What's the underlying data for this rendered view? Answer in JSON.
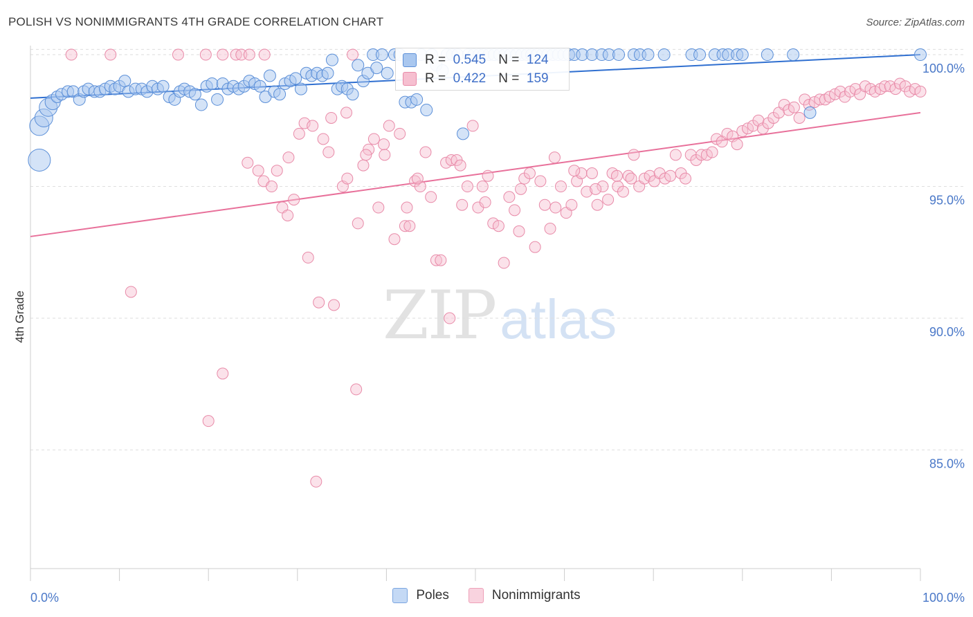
{
  "header": {
    "title": "POLISH VS NONIMMIGRANTS 4TH GRADE CORRELATION CHART",
    "source": "Source: ZipAtlas.com"
  },
  "watermark": {
    "zip": "ZIP",
    "atlas": "atlas"
  },
  "legend": {
    "rows": [
      {
        "r_label": "R =",
        "r_value": "0.545",
        "n_label": "N =",
        "n_value": "124"
      },
      {
        "r_label": "R =",
        "r_value": "0.422",
        "n_label": "N =",
        "n_value": "159"
      }
    ]
  },
  "bottom_legend": {
    "poles": "Poles",
    "nonimmigrants": "Nonimmigrants"
  },
  "colors": {
    "poles_fill": "#a9c7ef",
    "poles_stroke": "#5b8fd8",
    "poles_line": "#2f6fd0",
    "non_fill": "#f6bfd0",
    "non_stroke": "#e88aa8",
    "non_line": "#e8709a",
    "tick_text": "#4a78c8",
    "grid": "#dedede"
  },
  "chart_data": {
    "type": "scatter",
    "title": "POLISH VS NONIMMIGRANTS 4TH GRADE CORRELATION CHART",
    "xlabel": "",
    "ylabel": "4th Grade",
    "xlim": [
      0,
      100
    ],
    "ylim": [
      80.5,
      100.5
    ],
    "x_tick_labels": [
      "0.0%",
      "100.0%"
    ],
    "y_ticks": [
      85,
      90,
      95,
      100
    ],
    "y_tick_labels": [
      "85.0%",
      "90.0%",
      "95.0%",
      "100.0%"
    ],
    "grid": true,
    "series": [
      {
        "name": "Poles",
        "r": 0.545,
        "n": 124,
        "trend": {
          "x": [
            0,
            100
          ],
          "y": [
            98.35,
            100.0
          ]
        },
        "points": [
          [
            1,
            96.0
          ],
          [
            1,
            97.3
          ],
          [
            1.5,
            97.6
          ],
          [
            2,
            98.0
          ],
          [
            2.5,
            98.2
          ],
          [
            3,
            98.4
          ],
          [
            3.5,
            98.5
          ],
          [
            4.2,
            98.6
          ],
          [
            4.8,
            98.6
          ],
          [
            5.5,
            98.3
          ],
          [
            6,
            98.6
          ],
          [
            6.5,
            98.7
          ],
          [
            7.2,
            98.6
          ],
          [
            7.8,
            98.6
          ],
          [
            8.4,
            98.7
          ],
          [
            9,
            98.8
          ],
          [
            9.5,
            98.7
          ],
          [
            10,
            98.8
          ],
          [
            10.6,
            99.0
          ],
          [
            11,
            98.6
          ],
          [
            11.8,
            98.7
          ],
          [
            12.5,
            98.7
          ],
          [
            13.1,
            98.6
          ],
          [
            13.7,
            98.8
          ],
          [
            14.3,
            98.7
          ],
          [
            14.9,
            98.8
          ],
          [
            15.6,
            98.4
          ],
          [
            16.2,
            98.3
          ],
          [
            16.8,
            98.6
          ],
          [
            17.3,
            98.7
          ],
          [
            17.9,
            98.6
          ],
          [
            18.5,
            98.5
          ],
          [
            19.2,
            98.1
          ],
          [
            19.8,
            98.8
          ],
          [
            20.4,
            98.9
          ],
          [
            21,
            98.3
          ],
          [
            21.6,
            98.9
          ],
          [
            22.2,
            98.7
          ],
          [
            22.8,
            98.8
          ],
          [
            23.4,
            98.7
          ],
          [
            24,
            98.8
          ],
          [
            24.6,
            99.0
          ],
          [
            25.2,
            98.9
          ],
          [
            25.8,
            98.8
          ],
          [
            26.4,
            98.4
          ],
          [
            26.9,
            99.2
          ],
          [
            27.4,
            98.6
          ],
          [
            28,
            98.5
          ],
          [
            28.6,
            98.9
          ],
          [
            29.2,
            99.0
          ],
          [
            29.8,
            99.1
          ],
          [
            30.4,
            98.7
          ],
          [
            31,
            99.3
          ],
          [
            31.6,
            99.2
          ],
          [
            32.2,
            99.3
          ],
          [
            32.8,
            99.2
          ],
          [
            33.4,
            99.3
          ],
          [
            33.9,
            99.8
          ],
          [
            34.5,
            98.7
          ],
          [
            35,
            98.8
          ],
          [
            35.6,
            98.7
          ],
          [
            36.2,
            98.5
          ],
          [
            36.8,
            99.6
          ],
          [
            37.4,
            99.0
          ],
          [
            37.9,
            99.3
          ],
          [
            38.5,
            100.0
          ],
          [
            38.9,
            99.5
          ],
          [
            39.5,
            100.0
          ],
          [
            40.1,
            99.3
          ],
          [
            40.9,
            100.0
          ],
          [
            41.5,
            100.0
          ],
          [
            42.1,
            98.2
          ],
          [
            42.8,
            98.2
          ],
          [
            43.4,
            98.3
          ],
          [
            43.9,
            100.0
          ],
          [
            44.5,
            97.9
          ],
          [
            45.1,
            100.0
          ],
          [
            45.6,
            99.6
          ],
          [
            46.3,
            99.4
          ],
          [
            46.8,
            100.0
          ],
          [
            47.4,
            100.0
          ],
          [
            48,
            100.0
          ],
          [
            48.6,
            97.0
          ],
          [
            49.2,
            100.0
          ],
          [
            49.8,
            100.0
          ],
          [
            50.4,
            100.0
          ],
          [
            50.9,
            100.0
          ],
          [
            51.5,
            100.0
          ],
          [
            52.1,
            100.0
          ],
          [
            52.7,
            100.0
          ],
          [
            53.3,
            100.0
          ],
          [
            53.9,
            100.0
          ],
          [
            54.6,
            100.0
          ],
          [
            55.2,
            100.0
          ],
          [
            55.8,
            100.0
          ],
          [
            56.3,
            100.0
          ],
          [
            56.9,
            100.0
          ],
          [
            57.5,
            100.0
          ],
          [
            58.1,
            100.0
          ],
          [
            58.7,
            100.0
          ],
          [
            59.3,
            100.0
          ],
          [
            59.9,
            100.0
          ],
          [
            60.5,
            100.0
          ],
          [
            61.1,
            100.0
          ],
          [
            62,
            100.0
          ],
          [
            63.1,
            100.0
          ],
          [
            64.2,
            100.0
          ],
          [
            65,
            100.0
          ],
          [
            66.1,
            100.0
          ],
          [
            67.8,
            100.0
          ],
          [
            68.5,
            100.0
          ],
          [
            69.4,
            100.0
          ],
          [
            71.2,
            100.0
          ],
          [
            74.3,
            100.0
          ],
          [
            75.2,
            100.0
          ],
          [
            76.9,
            100.0
          ],
          [
            77.8,
            100.0
          ],
          [
            78.4,
            100.0
          ],
          [
            79.4,
            100.0
          ],
          [
            80,
            100.0
          ],
          [
            82.8,
            100.0
          ],
          [
            85.7,
            100.0
          ],
          [
            87.6,
            97.8
          ],
          [
            100,
            100.0
          ]
        ]
      },
      {
        "name": "Nonimmigrants",
        "r": 0.422,
        "n": 159,
        "trend": {
          "x": [
            0,
            100
          ],
          "y": [
            93.1,
            97.8
          ]
        },
        "points": [
          [
            4.6,
            100.0
          ],
          [
            9,
            100.0
          ],
          [
            11.3,
            91.0
          ],
          [
            16.6,
            100.0
          ],
          [
            19.7,
            100.0
          ],
          [
            21.6,
            100.0
          ],
          [
            23.1,
            100.0
          ],
          [
            23.7,
            100.0
          ],
          [
            24.6,
            100.0
          ],
          [
            26.3,
            100.0
          ],
          [
            25.6,
            95.6
          ],
          [
            26.2,
            95.2
          ],
          [
            27.1,
            95.0
          ],
          [
            27.7,
            95.6
          ],
          [
            28.3,
            94.2
          ],
          [
            29,
            96.1
          ],
          [
            29.6,
            94.5
          ],
          [
            30.2,
            97.0
          ],
          [
            30.8,
            97.4
          ],
          [
            31.2,
            92.3
          ],
          [
            31.7,
            97.3
          ],
          [
            32.4,
            90.6
          ],
          [
            32.9,
            96.8
          ],
          [
            33.5,
            96.3
          ],
          [
            34.1,
            90.5
          ],
          [
            35.1,
            95.0
          ],
          [
            35.6,
            95.3
          ],
          [
            36.2,
            100.0
          ],
          [
            36.8,
            93.6
          ],
          [
            37.4,
            95.8
          ],
          [
            38,
            96.4
          ],
          [
            38.6,
            96.8
          ],
          [
            39.1,
            94.2
          ],
          [
            39.7,
            96.6
          ],
          [
            40.3,
            97.3
          ],
          [
            40.9,
            93.0
          ],
          [
            41.5,
            97.0
          ],
          [
            42.1,
            93.5
          ],
          [
            42.6,
            93.5
          ],
          [
            43.2,
            95.2
          ],
          [
            43.8,
            95.0
          ],
          [
            44.4,
            96.3
          ],
          [
            45,
            94.6
          ],
          [
            45.6,
            92.2
          ],
          [
            46.1,
            92.2
          ],
          [
            46.7,
            95.9
          ],
          [
            47.3,
            96.0
          ],
          [
            47.9,
            96.0
          ],
          [
            48.5,
            94.3
          ],
          [
            49.1,
            95.0
          ],
          [
            49.7,
            97.3
          ],
          [
            50.3,
            94.2
          ],
          [
            50.8,
            95.0
          ],
          [
            51.4,
            95.4
          ],
          [
            52,
            93.6
          ],
          [
            52.6,
            93.5
          ],
          [
            53.2,
            92.1
          ],
          [
            53.8,
            94.6
          ],
          [
            54.4,
            94.1
          ],
          [
            54.9,
            93.3
          ],
          [
            55.5,
            95.3
          ],
          [
            56.1,
            95.5
          ],
          [
            56.7,
            92.7
          ],
          [
            57.3,
            95.2
          ],
          [
            57.8,
            94.3
          ],
          [
            58.4,
            93.4
          ],
          [
            59,
            94.2
          ],
          [
            59.6,
            95.0
          ],
          [
            60.2,
            94.0
          ],
          [
            60.8,
            94.3
          ],
          [
            61.4,
            95.2
          ],
          [
            61.9,
            95.5
          ],
          [
            62.5,
            94.8
          ],
          [
            63.1,
            95.5
          ],
          [
            63.7,
            94.3
          ],
          [
            64.3,
            95.0
          ],
          [
            64.9,
            94.5
          ],
          [
            65.4,
            95.5
          ],
          [
            66,
            95.0
          ],
          [
            66.6,
            94.8
          ],
          [
            67.2,
            95.4
          ],
          [
            67.8,
            96.2
          ],
          [
            68.4,
            95.0
          ],
          [
            69,
            95.3
          ],
          [
            69.6,
            95.4
          ],
          [
            70.1,
            95.2
          ],
          [
            70.7,
            95.5
          ],
          [
            71.3,
            95.3
          ],
          [
            71.9,
            95.4
          ],
          [
            72.5,
            96.2
          ],
          [
            73.1,
            95.5
          ],
          [
            73.6,
            95.3
          ],
          [
            74.2,
            96.2
          ],
          [
            74.8,
            96.0
          ],
          [
            75.4,
            96.2
          ],
          [
            76,
            96.2
          ],
          [
            76.6,
            96.3
          ],
          [
            77.1,
            96.8
          ],
          [
            77.7,
            96.7
          ],
          [
            78.3,
            97.0
          ],
          [
            78.9,
            96.9
          ],
          [
            79.4,
            96.6
          ],
          [
            80,
            97.1
          ],
          [
            80.6,
            97.2
          ],
          [
            81.2,
            97.3
          ],
          [
            81.8,
            97.5
          ],
          [
            82.3,
            97.2
          ],
          [
            82.9,
            97.4
          ],
          [
            83.5,
            97.6
          ],
          [
            84.1,
            97.8
          ],
          [
            84.7,
            98.1
          ],
          [
            85.2,
            97.9
          ],
          [
            85.8,
            98.0
          ],
          [
            86.4,
            97.6
          ],
          [
            87,
            98.3
          ],
          [
            87.5,
            98.1
          ],
          [
            88.1,
            98.2
          ],
          [
            88.7,
            98.3
          ],
          [
            89.3,
            98.3
          ],
          [
            89.8,
            98.4
          ],
          [
            90.4,
            98.5
          ],
          [
            91,
            98.6
          ],
          [
            91.5,
            98.4
          ],
          [
            92.1,
            98.6
          ],
          [
            92.7,
            98.7
          ],
          [
            93.2,
            98.5
          ],
          [
            93.8,
            98.8
          ],
          [
            94.4,
            98.7
          ],
          [
            94.9,
            98.6
          ],
          [
            95.5,
            98.7
          ],
          [
            96,
            98.8
          ],
          [
            96.6,
            98.8
          ],
          [
            97.2,
            98.7
          ],
          [
            97.7,
            98.9
          ],
          [
            98.3,
            98.8
          ],
          [
            98.8,
            98.6
          ],
          [
            99.4,
            98.7
          ],
          [
            100,
            98.6
          ],
          [
            21.6,
            87.9
          ],
          [
            36.6,
            87.3
          ],
          [
            20,
            86.1
          ],
          [
            32.1,
            83.8
          ],
          [
            37.7,
            96.2
          ],
          [
            43.5,
            95.3
          ],
          [
            47.1,
            90.0
          ],
          [
            33.8,
            97.6
          ],
          [
            35.5,
            97.8
          ],
          [
            24.4,
            95.9
          ],
          [
            28.9,
            93.9
          ],
          [
            42.3,
            94.2
          ],
          [
            39.8,
            96.2
          ],
          [
            48.3,
            95.8
          ],
          [
            51.1,
            94.4
          ],
          [
            55.1,
            94.9
          ],
          [
            58.9,
            96.1
          ],
          [
            61.1,
            95.6
          ],
          [
            63.5,
            94.9
          ],
          [
            65.9,
            95.4
          ],
          [
            67.5,
            95.3
          ]
        ]
      }
    ]
  },
  "notes": ""
}
